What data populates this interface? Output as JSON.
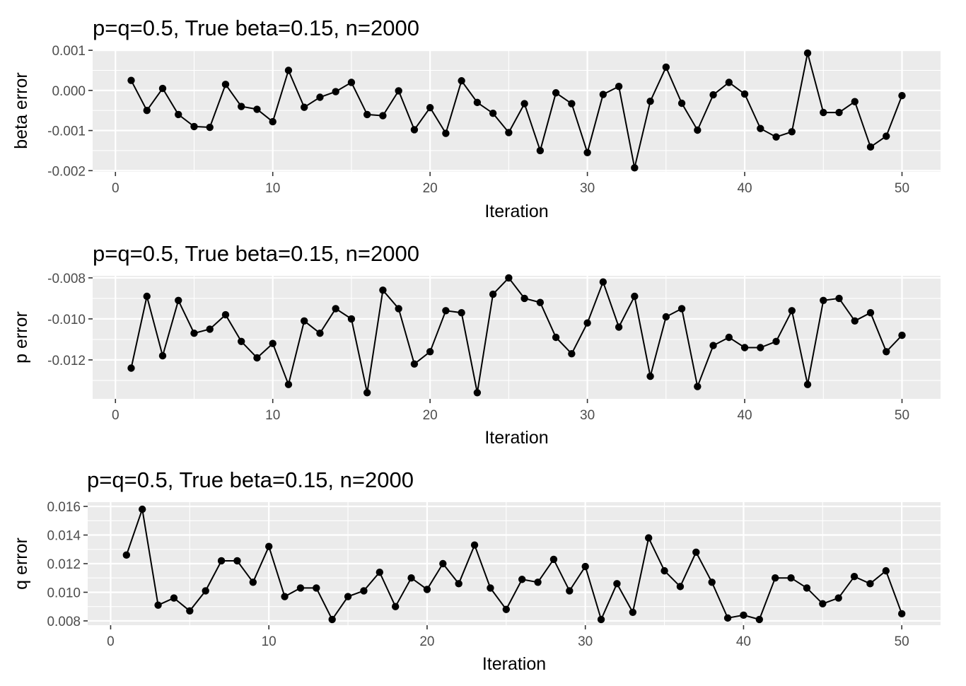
{
  "chart_data": [
    {
      "type": "line",
      "title": "p=q=0.5, True beta=0.15, n=2000",
      "xlabel": "Iteration",
      "ylabel": "beta error",
      "xlim": [
        -1.45,
        52.45
      ],
      "ylim": [
        -0.00203,
        0.00102
      ],
      "x_ticks": [
        0,
        10,
        20,
        30,
        40,
        50
      ],
      "x_tick_labels": [
        "0",
        "10",
        "20",
        "30",
        "40",
        "50"
      ],
      "y_ticks": [
        -0.002,
        -0.001,
        0.0,
        0.001
      ],
      "y_tick_labels": [
        "-0.002",
        "-0.001",
        "0.000",
        "0.001"
      ],
      "grid": true,
      "x": [
        1,
        2,
        3,
        4,
        5,
        6,
        7,
        8,
        9,
        10,
        11,
        12,
        13,
        14,
        15,
        16,
        17,
        18,
        19,
        20,
        21,
        22,
        23,
        24,
        25,
        26,
        27,
        28,
        29,
        30,
        31,
        32,
        33,
        34,
        35,
        36,
        37,
        38,
        39,
        40,
        41,
        42,
        43,
        44,
        45,
        46,
        47,
        48,
        49,
        50
      ],
      "series": [
        {
          "values": [
            0.00025,
            -0.0005,
            5e-05,
            -0.0006,
            -0.0009,
            -0.00092,
            0.00015,
            -0.0004,
            -0.00047,
            -0.00078,
            0.0005,
            -0.00042,
            -0.00017,
            -3e-05,
            0.0002,
            -0.0006,
            -0.00063,
            -1e-05,
            -0.00098,
            -0.00043,
            -0.00107,
            0.00024,
            -0.0003,
            -0.00057,
            -0.00105,
            -0.00033,
            -0.0015,
            -6e-05,
            -0.00033,
            -0.00155,
            -0.0001,
            0.0001,
            -0.00193,
            -0.00027,
            0.00058,
            -0.00032,
            -0.00099,
            -0.00011,
            0.0002,
            -9e-05,
            -0.00095,
            -0.00116,
            -0.00103,
            0.00093,
            -0.00055,
            -0.00055,
            -0.00028,
            -0.00141,
            -0.00114,
            -0.00013
          ]
        }
      ]
    },
    {
      "type": "line",
      "title": "p=q=0.5, True beta=0.15, n=2000",
      "xlabel": "Iteration",
      "ylabel": "p error",
      "xlim": [
        -1.45,
        52.45
      ],
      "ylim": [
        -0.0139,
        -0.0079
      ],
      "x_ticks": [
        0,
        10,
        20,
        30,
        40,
        50
      ],
      "x_tick_labels": [
        "0",
        "10",
        "20",
        "30",
        "40",
        "50"
      ],
      "y_ticks": [
        -0.012,
        -0.01,
        -0.008
      ],
      "y_tick_labels": [
        "-0.012",
        "-0.010",
        "-0.008"
      ],
      "grid": true,
      "x": [
        1,
        2,
        3,
        4,
        5,
        6,
        7,
        8,
        9,
        10,
        11,
        12,
        13,
        14,
        15,
        16,
        17,
        18,
        19,
        20,
        21,
        22,
        23,
        24,
        25,
        26,
        27,
        28,
        29,
        30,
        31,
        32,
        33,
        34,
        35,
        36,
        37,
        38,
        39,
        40,
        41,
        42,
        43,
        44,
        45,
        46,
        47,
        48,
        49,
        50
      ],
      "series": [
        {
          "values": [
            -0.0124,
            -0.0089,
            -0.0118,
            -0.0091,
            -0.0107,
            -0.0105,
            -0.0098,
            -0.0111,
            -0.0119,
            -0.0112,
            -0.0132,
            -0.0101,
            -0.0107,
            -0.0095,
            -0.01,
            -0.0136,
            -0.0086,
            -0.0095,
            -0.0122,
            -0.0116,
            -0.0096,
            -0.0097,
            -0.0136,
            -0.0088,
            -0.008,
            -0.009,
            -0.0092,
            -0.0109,
            -0.0117,
            -0.0102,
            -0.0082,
            -0.0104,
            -0.0089,
            -0.0128,
            -0.0099,
            -0.0095,
            -0.0133,
            -0.0113,
            -0.0109,
            -0.0114,
            -0.0114,
            -0.0111,
            -0.0096,
            -0.0132,
            -0.0091,
            -0.009,
            -0.0101,
            -0.0097,
            -0.0116,
            -0.0108
          ]
        }
      ]
    },
    {
      "type": "line",
      "title": "p=q=0.5, True beta=0.15, n=2000",
      "xlabel": "Iteration",
      "ylabel": "q error",
      "xlim": [
        -1.45,
        52.45
      ],
      "ylim": [
        0.0077,
        0.0163
      ],
      "x_ticks": [
        0,
        10,
        20,
        30,
        40,
        50
      ],
      "x_tick_labels": [
        "0",
        "10",
        "20",
        "30",
        "40",
        "50"
      ],
      "y_ticks": [
        0.008,
        0.01,
        0.012,
        0.014,
        0.016
      ],
      "y_tick_labels": [
        "0.008",
        "0.010",
        "0.012",
        "0.014",
        "0.016"
      ],
      "grid": true,
      "x": [
        1,
        2,
        3,
        4,
        5,
        6,
        7,
        8,
        9,
        10,
        11,
        12,
        13,
        14,
        15,
        16,
        17,
        18,
        19,
        20,
        21,
        22,
        23,
        24,
        25,
        26,
        27,
        28,
        29,
        30,
        31,
        32,
        33,
        34,
        35,
        36,
        37,
        38,
        39,
        40,
        41,
        42,
        43,
        44,
        45,
        46,
        47,
        48,
        49,
        50
      ],
      "series": [
        {
          "values": [
            0.0126,
            0.0158,
            0.0091,
            0.0096,
            0.0087,
            0.0101,
            0.0122,
            0.0122,
            0.0107,
            0.0132,
            0.0097,
            0.0103,
            0.0103,
            0.0081,
            0.0097,
            0.0101,
            0.0114,
            0.009,
            0.011,
            0.0102,
            0.012,
            0.0106,
            0.0133,
            0.0103,
            0.0088,
            0.0109,
            0.0107,
            0.0123,
            0.0101,
            0.0118,
            0.0081,
            0.0106,
            0.0086,
            0.0138,
            0.0115,
            0.0104,
            0.0128,
            0.0107,
            0.0082,
            0.0084,
            0.0081,
            0.011,
            0.011,
            0.0103,
            0.0092,
            0.0096,
            0.0111,
            0.0106,
            0.0115,
            0.0085
          ]
        }
      ]
    }
  ]
}
